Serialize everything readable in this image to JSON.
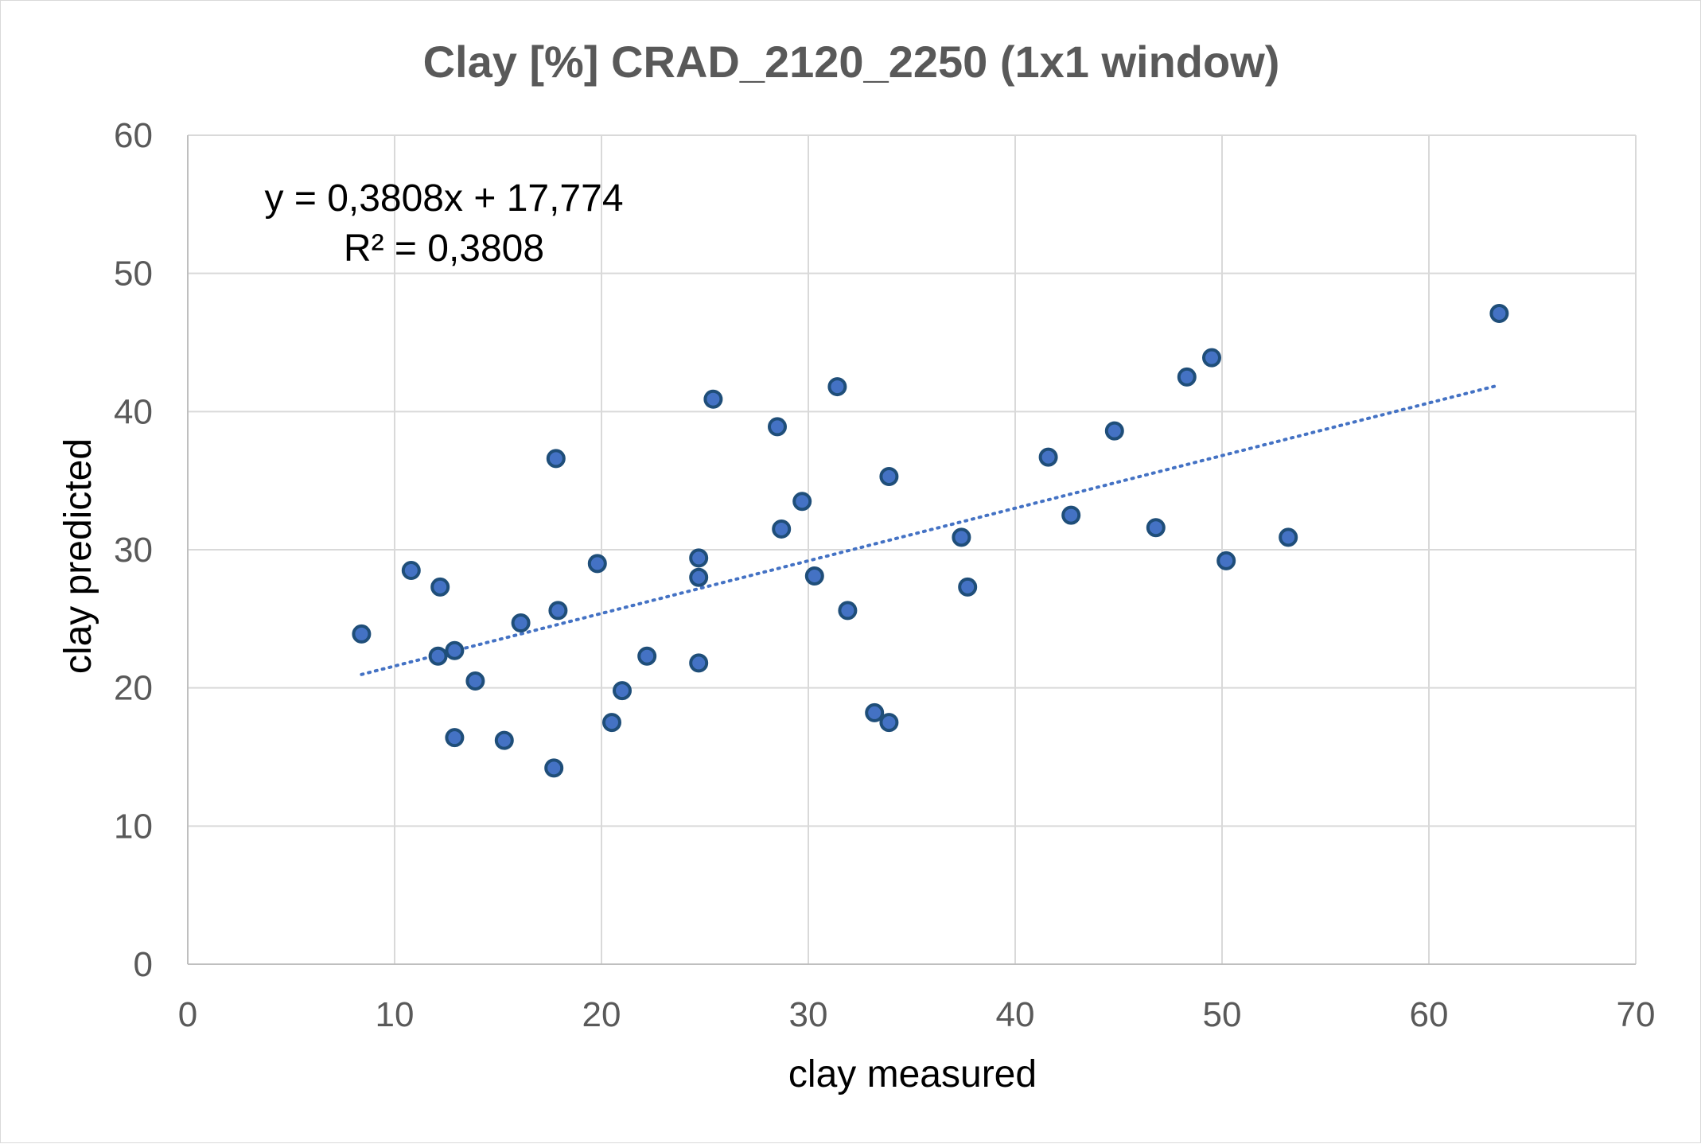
{
  "chart_data": {
    "type": "scatter",
    "title": "Clay [%] CRAD_2120_2250 (1x1 window)",
    "xlabel": "clay measured",
    "ylabel": "clay predicted",
    "xlim": [
      0,
      70
    ],
    "ylim": [
      0,
      60
    ],
    "x_ticks": [
      0,
      10,
      20,
      30,
      40,
      50,
      60,
      70
    ],
    "y_ticks": [
      0,
      10,
      20,
      30,
      40,
      50,
      60
    ],
    "x_tick_labels": [
      "0",
      "10",
      "20",
      "30",
      "40",
      "50",
      "60",
      "70"
    ],
    "y_tick_labels": [
      "0",
      "10",
      "20",
      "30",
      "40",
      "50",
      "60"
    ],
    "grid": true,
    "legend": "none",
    "colors": {
      "marker_fill": "#4472c4",
      "marker_edge": "#1f4e79",
      "trendline": "#4472c4",
      "grid": "#d9d9d9",
      "text": "#595959"
    },
    "series": [
      {
        "points": [
          [
            8.4,
            23.9
          ],
          [
            10.8,
            28.5
          ],
          [
            12.1,
            22.3
          ],
          [
            12.2,
            27.3
          ],
          [
            12.9,
            22.7
          ],
          [
            12.9,
            16.4
          ],
          [
            13.9,
            20.5
          ],
          [
            15.3,
            16.2
          ],
          [
            16.1,
            24.7
          ],
          [
            17.7,
            14.2
          ],
          [
            17.8,
            36.6
          ],
          [
            17.9,
            25.6
          ],
          [
            19.8,
            29.0
          ],
          [
            20.5,
            17.5
          ],
          [
            21.0,
            19.8
          ],
          [
            22.2,
            22.3
          ],
          [
            24.7,
            29.4
          ],
          [
            24.7,
            28.0
          ],
          [
            24.7,
            21.8
          ],
          [
            25.4,
            40.9
          ],
          [
            28.5,
            38.9
          ],
          [
            28.7,
            31.5
          ],
          [
            29.7,
            33.5
          ],
          [
            30.3,
            28.1
          ],
          [
            31.4,
            41.8
          ],
          [
            31.9,
            25.6
          ],
          [
            33.2,
            18.2
          ],
          [
            33.9,
            35.3
          ],
          [
            33.9,
            17.5
          ],
          [
            37.4,
            30.9
          ],
          [
            37.7,
            27.3
          ],
          [
            41.6,
            36.7
          ],
          [
            42.7,
            32.5
          ],
          [
            44.8,
            38.6
          ],
          [
            46.8,
            31.6
          ],
          [
            48.3,
            42.5
          ],
          [
            49.5,
            43.9
          ],
          [
            50.2,
            29.2
          ],
          [
            53.2,
            30.9
          ],
          [
            63.4,
            47.1
          ]
        ]
      }
    ],
    "trendline": {
      "type": "linear",
      "slope": 0.3808,
      "intercept": 17.774,
      "x_start": 8.4,
      "x_end": 63.4
    },
    "annotations": {
      "equation": "y = 0,3808x + 17,774",
      "r_squared": "R² = 0,3808"
    }
  }
}
